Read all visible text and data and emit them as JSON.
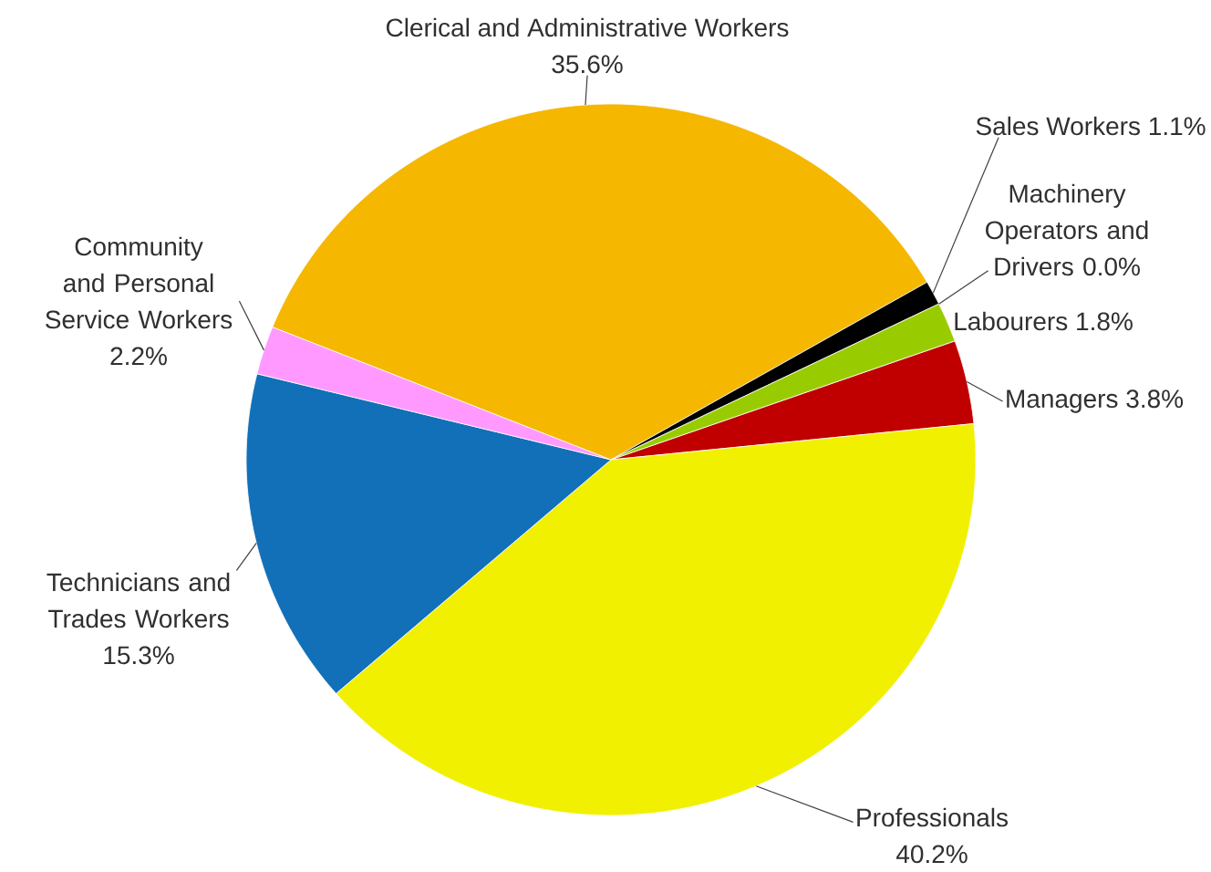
{
  "chart_data": {
    "type": "pie",
    "categories": [
      "Managers",
      "Professionals",
      "Technicians and Trades Workers",
      "Community and Personal Service Workers",
      "Clerical and Administrative Workers",
      "Sales Workers",
      "Machinery Operators and Drivers",
      "Labourers"
    ],
    "values": [
      3.8,
      40.2,
      15.3,
      2.2,
      35.6,
      1.1,
      0.0,
      1.8
    ],
    "value_labels": [
      "3.8%",
      "40.2%",
      "15.3%",
      "2.2%",
      "35.6%",
      "1.1%",
      "0.0%",
      "1.8%"
    ],
    "colors": [
      "#c00000",
      "#f0f000",
      "#1170b8",
      "#ff99ff",
      "#f5b700",
      "#000000",
      null,
      "#99cc00"
    ]
  }
}
